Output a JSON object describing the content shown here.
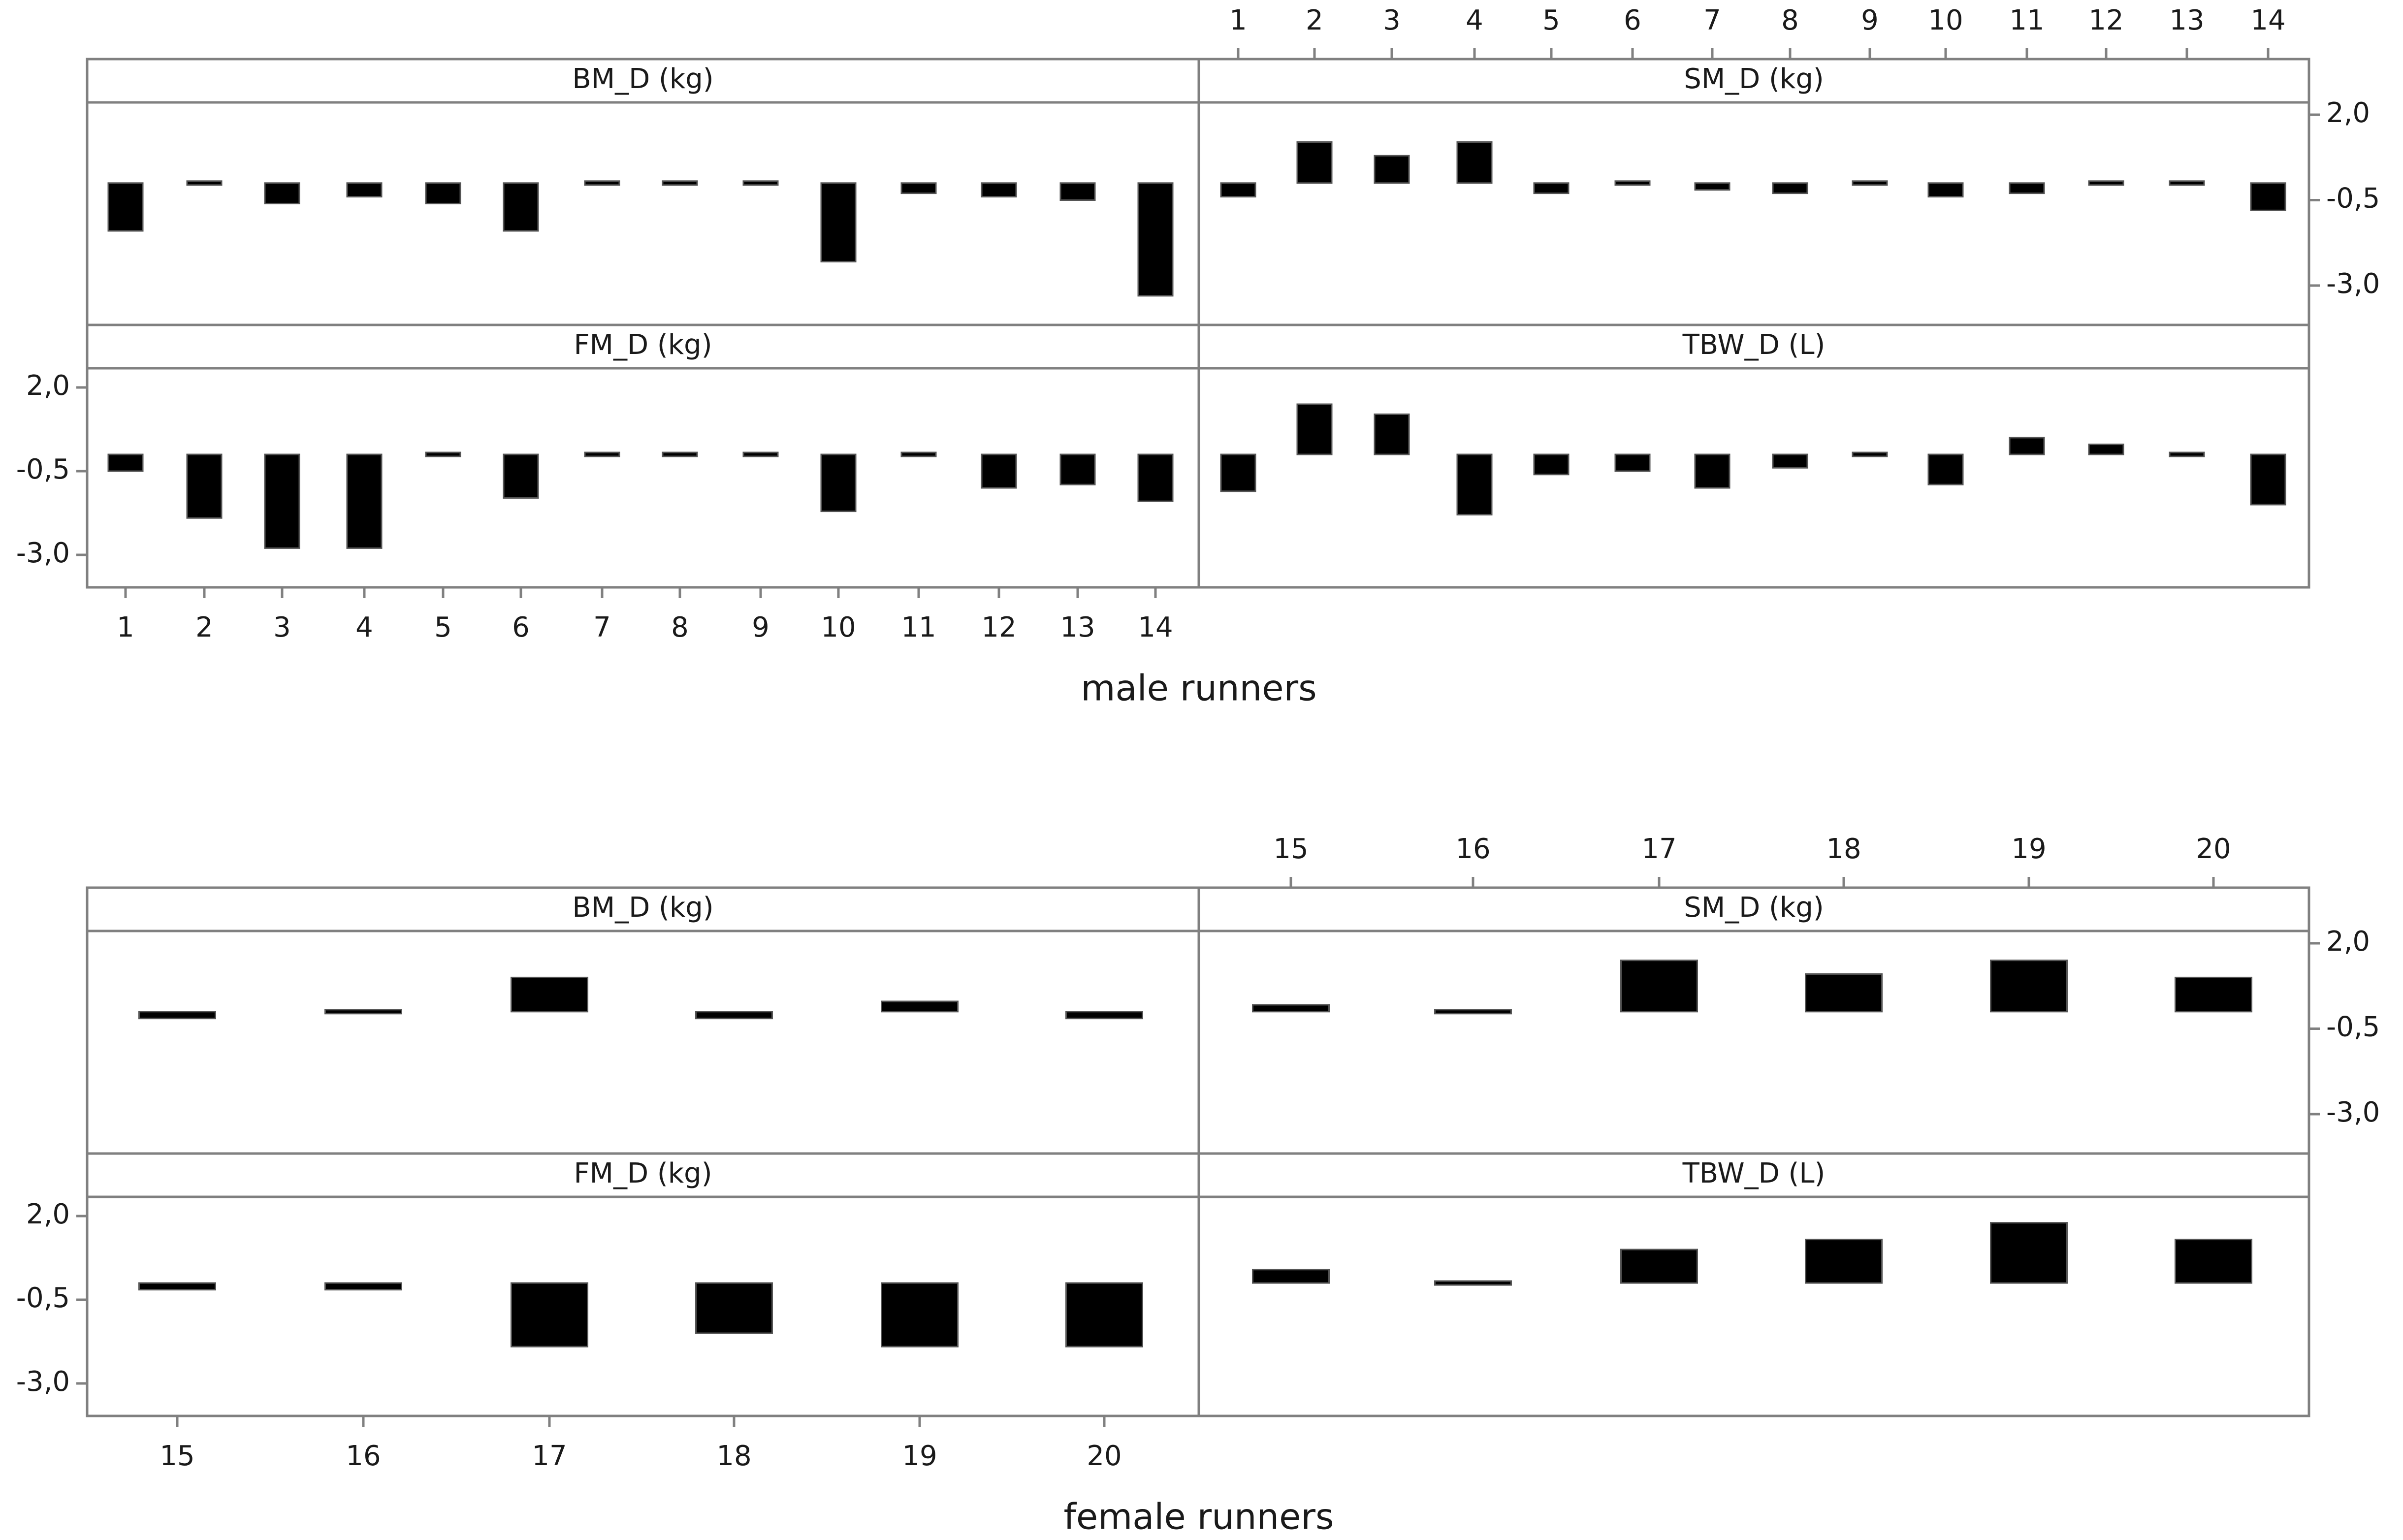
{
  "chart_data": [
    {
      "type": "bar",
      "figure_label": "male runners",
      "categories": [
        "1",
        "2",
        "3",
        "4",
        "5",
        "6",
        "7",
        "8",
        "9",
        "10",
        "11",
        "12",
        "13",
        "14"
      ],
      "y_ticks": [
        "2,0",
        "-0,5",
        "-3,0"
      ],
      "y_tick_values": [
        2.0,
        -0.5,
        -3.0
      ],
      "ylim": [
        -4.0,
        2.5
      ],
      "panels": [
        {
          "name": "BM_D (kg)",
          "values": [
            -1.4,
            0.0,
            -0.6,
            -0.4,
            -0.6,
            -1.4,
            0.0,
            0.0,
            0.0,
            -2.3,
            -0.3,
            -0.4,
            -0.5,
            -3.3
          ]
        },
        {
          "name": "SM_D (kg)",
          "values": [
            -0.4,
            1.2,
            0.8,
            1.2,
            -0.3,
            0.0,
            -0.2,
            -0.3,
            0.0,
            -0.4,
            -0.3,
            0.0,
            0.0,
            -0.8
          ]
        },
        {
          "name": "FM_D (kg)",
          "values": [
            -0.5,
            -1.9,
            -2.8,
            -2.8,
            0.0,
            -1.3,
            0.0,
            0.0,
            0.0,
            -1.7,
            0.0,
            -1.0,
            -0.9,
            -1.4
          ]
        },
        {
          "name": "TBW_D (L)",
          "values": [
            -1.1,
            1.5,
            1.2,
            -1.8,
            -0.6,
            -0.5,
            -1.0,
            -0.4,
            0.0,
            -0.9,
            0.5,
            0.3,
            0.0,
            -1.5
          ]
        }
      ]
    },
    {
      "type": "bar",
      "figure_label": "female runners",
      "categories": [
        "15",
        "16",
        "17",
        "18",
        "19",
        "20"
      ],
      "y_ticks": [
        "2,0",
        "-0,5",
        "-3,0"
      ],
      "y_tick_values": [
        2.0,
        -0.5,
        -3.0
      ],
      "ylim": [
        -4.0,
        2.5
      ],
      "panels": [
        {
          "name": "BM_D (kg)",
          "values": [
            -0.2,
            0.0,
            1.0,
            -0.2,
            0.3,
            -0.2
          ]
        },
        {
          "name": "SM_D (kg)",
          "values": [
            0.2,
            0.0,
            1.5,
            1.1,
            1.5,
            1.0
          ]
        },
        {
          "name": "FM_D (kg)",
          "values": [
            -0.2,
            -0.2,
            -1.9,
            -1.5,
            -1.9,
            -1.9
          ]
        },
        {
          "name": "TBW_D (L)",
          "values": [
            0.4,
            0.0,
            1.0,
            1.3,
            1.8,
            1.3
          ]
        }
      ]
    }
  ],
  "style": {
    "bar_color": "#000000",
    "frame_color": "#808080",
    "text_color": "#1a1a1a"
  }
}
